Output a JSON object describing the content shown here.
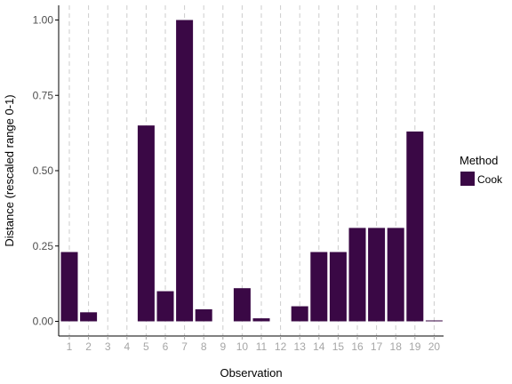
{
  "chart_data": {
    "type": "bar",
    "categories": [
      "1",
      "2",
      "3",
      "4",
      "5",
      "6",
      "7",
      "8",
      "9",
      "10",
      "11",
      "12",
      "13",
      "14",
      "15",
      "16",
      "17",
      "18",
      "19",
      "20"
    ],
    "series": [
      {
        "name": "Cook",
        "values": [
          0.23,
          0.03,
          0.0,
          0.0,
          0.65,
          0.1,
          1.0,
          0.04,
          0.0,
          0.11,
          0.01,
          0.0,
          0.05,
          0.23,
          0.23,
          0.31,
          0.31,
          0.31,
          0.63,
          0.003
        ]
      }
    ],
    "xlabel": "Observation",
    "ylabel": "Distance (rescaled range 0-1)",
    "ylim": [
      0,
      1
    ],
    "yticks": [
      "0.00",
      "0.25",
      "0.50",
      "0.75",
      "1.00"
    ],
    "legend": {
      "title": "Method",
      "position": "right"
    },
    "grid": "dashed vertical at categories",
    "colors": {
      "bar": "#3a0845",
      "grid": "#cccccc",
      "axis": "#000000"
    }
  }
}
